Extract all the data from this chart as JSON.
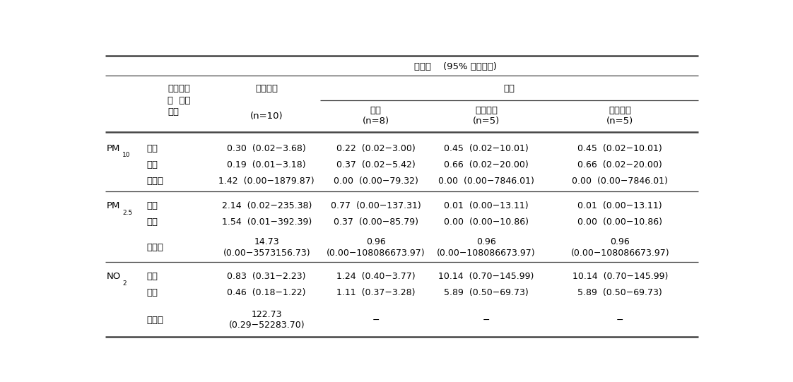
{
  "title_risk": "위험도",
  "title_ci": "(95% 신뢰구간)",
  "col_header_1": "공기청정\n기  사용\n여부",
  "col_header_2_line1": "질병진행",
  "col_header_2_line2": "(n=10)",
  "col_header_3": "입원",
  "col_header_3a_line1": "전체",
  "col_header_3a_line2": "(n=8)",
  "col_header_3b_line1": "호흡기계",
  "col_header_3b_line2": "(n=5)",
  "col_header_3c_line1": "급성악화",
  "col_header_3c_line2": "(n=5)",
  "rows": [
    {
      "pollutant": "PM",
      "pollutant_sub": "10",
      "sub_rows": [
        {
          "label": "전체",
          "c1": "0.30  (0.02−3.68)",
          "c2": "0.22  (0.02−3.00)",
          "c3": "0.45  (0.02−10.01)",
          "c4": "0.45  (0.02−10.01)"
        },
        {
          "label": "사용",
          "c1": "0.19  (0.01−3.18)",
          "c2": "0.37  (0.02−5.42)",
          "c3": "0.66  (0.02−20.00)",
          "c4": "0.66  (0.02−20.00)"
        },
        {
          "label": "비사용",
          "c1": "1.42  (0.00−1879.87)",
          "c2": "0.00  (0.00−79.32)",
          "c3": "0.00  (0.00−7846.01)",
          "c4": "0.00  (0.00−7846.01)"
        }
      ]
    },
    {
      "pollutant": "PM",
      "pollutant_sub": "2.5",
      "sub_rows": [
        {
          "label": "전체",
          "c1": "2.14  (0.02−235.38)",
          "c2": "0.77  (0.00−137.31)",
          "c3": "0.01  (0.00−13.11)",
          "c4": "0.01  (0.00−13.11)"
        },
        {
          "label": "사용",
          "c1": "1.54  (0.01−392.39)",
          "c2": "0.37  (0.00−85.79)",
          "c3": "0.00  (0.00−10.86)",
          "c4": "0.00  (0.00−10.86)"
        },
        {
          "label": "비사용",
          "c1": "14.73\n(0.00−3573156.73)",
          "c2": "0.96\n(0.00−108086673.97)",
          "c3": "0.96\n(0.00−108086673.97)",
          "c4": "0.96\n(0.00−108086673.97)"
        }
      ]
    },
    {
      "pollutant": "NO",
      "pollutant_sub": "2",
      "sub_rows": [
        {
          "label": "전체",
          "c1": "0.83  (0.31−2.23)",
          "c2": "1.24  (0.40−3.77)",
          "c3": "10.14  (0.70−145.99)",
          "c4": "10.14  (0.70−145.99)"
        },
        {
          "label": "사용",
          "c1": "0.46  (0.18−1.22)",
          "c2": "1.11  (0.37−3.28)",
          "c3": "5.89  (0.50−69.73)",
          "c4": "5.89  (0.50−69.73)"
        },
        {
          "label": "비사용",
          "c1": "122.73\n(0.29−52283.70)",
          "c2": "−",
          "c3": "−",
          "c4": "−"
        }
      ]
    }
  ],
  "background_color": "#ffffff",
  "text_color": "#000000",
  "line_color": "#444444",
  "font_size": 9.5,
  "header_font_size": 9.5
}
